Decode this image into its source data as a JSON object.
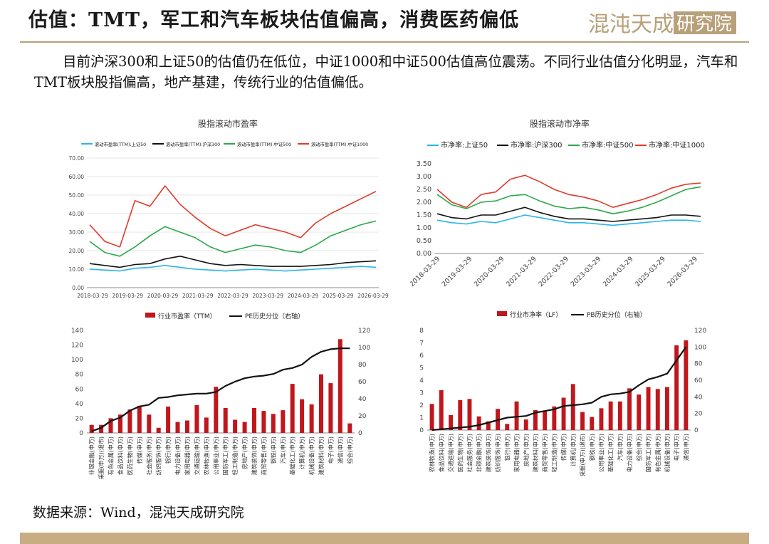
{
  "header": {
    "title": "估值：TMT，军工和汽车板块估值偏高，消费医药偏低",
    "logo_text": "混沌天成研究院"
  },
  "body_text": "目前沪深300和上证50的估值仍在低位，中证1000和中证500估值高位震荡。不同行业估值分化明显，汽车和TMT板块股指偏高，地产基建，传统行业的估值偏低。",
  "source": "数据来源：Wind，混沌天成研究院",
  "colors": {
    "lightblue": "#29b6e8",
    "black": "#111111",
    "green": "#2ba84a",
    "red": "#e03a2a",
    "bar": "#c0171c",
    "gold": "#b8a07a"
  },
  "chart_data": [
    {
      "type": "line",
      "title": "股指滚动市盈率",
      "x_ticks": [
        "2018-03-29",
        "2019-03-29",
        "2020-03-29",
        "2021-03-29",
        "2022-03-29",
        "2023-03-29",
        "2024-03-29",
        "2025-03-29",
        "2026-03-29"
      ],
      "y_ticks": [
        "0.00",
        "10.00",
        "20.00",
        "30.00",
        "40.00",
        "50.00",
        "60.00",
        "70.00"
      ],
      "ylim": [
        0,
        70
      ],
      "legend": "top",
      "series": [
        {
          "name": "滚动市盈率(TTM):上证50",
          "color": "#29b6e8",
          "values": [
            10,
            9.5,
            9,
            10.5,
            11,
            12,
            11,
            10,
            9.5,
            9,
            9.5,
            10,
            9.5,
            9,
            9.5,
            10,
            10.5,
            11,
            11.5,
            11
          ]
        },
        {
          "name": "滚动市盈率(TTM):沪深300",
          "color": "#111111",
          "values": [
            13,
            12,
            11,
            12.5,
            13,
            15.5,
            17,
            15,
            13,
            12,
            12.5,
            12,
            11.5,
            11.5,
            11.5,
            12,
            12.5,
            13.5,
            14,
            14.5
          ]
        },
        {
          "name": "滚动市盈率(TTM):中证500",
          "color": "#2ba84a",
          "values": [
            25,
            19,
            17,
            22,
            28,
            33,
            30,
            27,
            22,
            19,
            21,
            23,
            22,
            20,
            19,
            23,
            28,
            31,
            34,
            36
          ]
        },
        {
          "name": "滚动市盈率(TTM):中证1000",
          "color": "#e03a2a",
          "values": [
            34,
            25,
            22,
            47,
            44,
            55,
            45,
            38,
            32,
            28,
            31,
            34,
            32,
            30,
            27,
            35,
            40,
            44,
            48,
            52
          ]
        }
      ]
    },
    {
      "type": "line",
      "title": "股指滚动市净率",
      "x_ticks": [
        "2018-03-29",
        "2019-03-29",
        "2020-03-29",
        "2021-03-29",
        "2022-03-29",
        "2023-03-29",
        "2024-03-29",
        "2025-03-29",
        "2026-03-29"
      ],
      "y_ticks": [
        "0.00",
        "0.50",
        "1.00",
        "1.50",
        "2.00",
        "2.50",
        "3.00",
        "3.50"
      ],
      "ylim": [
        0,
        3.5
      ],
      "legend": "top",
      "series": [
        {
          "name": "市净率:上证50",
          "color": "#29b6e8",
          "values": [
            1.3,
            1.2,
            1.15,
            1.25,
            1.2,
            1.35,
            1.5,
            1.4,
            1.3,
            1.2,
            1.2,
            1.15,
            1.1,
            1.15,
            1.2,
            1.25,
            1.3,
            1.3,
            1.25
          ]
        },
        {
          "name": "市净率:沪深300",
          "color": "#111111",
          "values": [
            1.55,
            1.4,
            1.35,
            1.5,
            1.5,
            1.65,
            1.8,
            1.6,
            1.45,
            1.35,
            1.35,
            1.3,
            1.25,
            1.3,
            1.35,
            1.4,
            1.5,
            1.5,
            1.45
          ]
        },
        {
          "name": "市净率:中证500",
          "color": "#2ba84a",
          "values": [
            2.3,
            1.9,
            1.75,
            2.0,
            2.05,
            2.25,
            2.3,
            2.05,
            1.85,
            1.75,
            1.8,
            1.7,
            1.55,
            1.65,
            1.8,
            2.0,
            2.25,
            2.5,
            2.6
          ]
        },
        {
          "name": "市净率:中证1000",
          "color": "#e03a2a",
          "values": [
            2.5,
            2.0,
            1.8,
            2.3,
            2.4,
            2.9,
            3.05,
            2.8,
            2.5,
            2.3,
            2.2,
            2.05,
            1.8,
            1.95,
            2.1,
            2.3,
            2.55,
            2.7,
            2.75
          ]
        }
      ]
    },
    {
      "type": "bar",
      "legend": [
        "行业市盈率（TTM）",
        "PE历史分位（右轴）"
      ],
      "categories": [
        "非银金融(申万)",
        "采掘(申万)(退市)",
        "有色金属(申万)",
        "食品饮料(申万)",
        "医药生物(申万)",
        "传媒(申万)",
        "社会服务(申万)",
        "纺织服饰(申万)",
        "银行(申万)",
        "电力设备(申万)",
        "家用电器(申万)",
        "交通运输(申万)",
        "农林牧渔(申万)",
        "公用事业(申万)",
        "国防军工(申万)",
        "轻工制造(申万)",
        "房地产(申万)",
        "建筑装饰(申万)",
        "商贸零售(申万)",
        "钢铁(申万)",
        "汽车(申万)",
        "基础化工(申万)",
        "计算机(申万)",
        "机械设备(申万)",
        "建筑材料(申万)",
        "电子(申万)",
        "通信(申万)",
        "综合(申万)"
      ],
      "values": [
        11,
        11,
        20,
        25,
        32,
        37,
        25,
        7,
        36,
        15,
        17,
        38,
        21,
        63,
        34,
        18,
        15,
        34,
        30,
        26,
        31,
        67,
        46,
        39,
        80,
        68,
        128,
        13
      ],
      "line_values": [
        2,
        6,
        14,
        18,
        26,
        31,
        33,
        41,
        42,
        44,
        45,
        46,
        46,
        48,
        55,
        60,
        64,
        66,
        67,
        69,
        74,
        76,
        80,
        89,
        95,
        98,
        99,
        99
      ],
      "y_ticks": [
        "0",
        "20",
        "40",
        "60",
        "80",
        "100",
        "120",
        "140"
      ],
      "y2_ticks": [
        "0",
        "20",
        "40",
        "60",
        "80",
        "100",
        "120"
      ],
      "ylim": [
        0,
        140
      ],
      "y2lim": [
        0,
        120
      ]
    },
    {
      "type": "bar",
      "legend": [
        "行业市净率（LF）",
        "PB历史分位（右轴）"
      ],
      "categories": [
        "农林牧渔(申万)",
        "食品饮料(申万)",
        "交通运输(申万)",
        "医药生物(申万)",
        "社会服务(申万)",
        "非银金融(申万)",
        "建筑装饰(申万)",
        "纺织服饰(申万)",
        "银行(申万)",
        "家用电器(申万)",
        "房地产(申万)",
        "建筑材料(申万)",
        "商贸零售(申万)",
        "轻工制造(申万)",
        "传媒(申万)",
        "计算机(申万)",
        "采掘(申万)(退市)",
        "钢铁(申万)",
        "公用事业(申万)",
        "基础化工(申万)",
        "汽车(申万)",
        "电力设备(申万)",
        "综合(申万)",
        "国防军工(申万)",
        "有色金属(申万)",
        "机械设备(申万)",
        "电子(申万)",
        "通信(申万)"
      ],
      "values": [
        2.1,
        3.2,
        1.2,
        2.4,
        2.5,
        1.1,
        0.7,
        1.7,
        0.5,
        2.3,
        0.85,
        1.6,
        1.5,
        1.9,
        2.6,
        3.7,
        1.45,
        1.05,
        1.75,
        2.3,
        2.3,
        3.35,
        2.85,
        3.45,
        3.3,
        3.45,
        6.8,
        7.2
      ],
      "line_values": [
        0,
        1,
        2,
        3,
        4,
        6,
        9,
        12,
        15,
        16,
        17,
        21,
        23,
        25,
        29,
        30,
        31,
        33,
        40,
        43,
        44,
        46,
        54,
        61,
        64,
        68,
        84,
        100
      ],
      "y_ticks": [
        "0",
        "1",
        "2",
        "3",
        "4",
        "5",
        "6",
        "7",
        "8"
      ],
      "y2_ticks": [
        "0",
        "20",
        "40",
        "60",
        "80",
        "100",
        "120"
      ],
      "ylim": [
        0,
        8
      ],
      "y2lim": [
        0,
        120
      ]
    }
  ]
}
